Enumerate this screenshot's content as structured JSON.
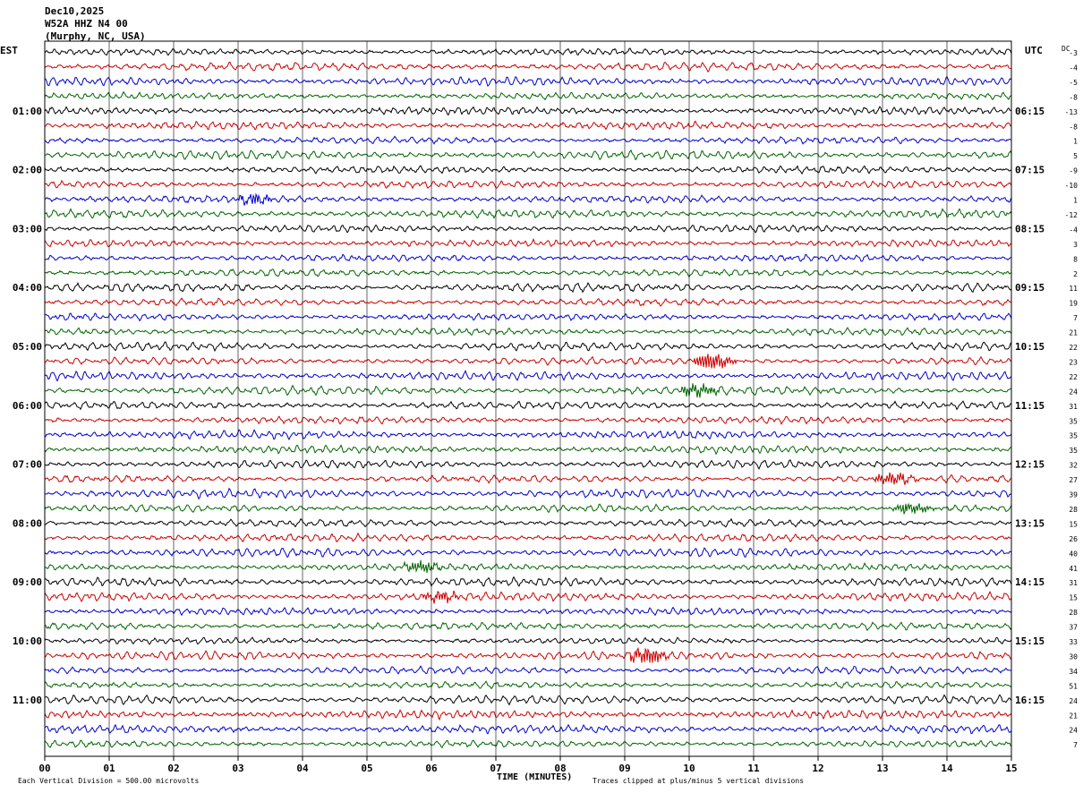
{
  "header": {
    "date": "Dec10,2025",
    "station": "W52A HHZ N4 00",
    "location": "(Murphy, NC, USA)"
  },
  "left_tz": "EST",
  "right_tz": "UTC",
  "dc_label": "DC",
  "x_axis_title": "TIME (MINUTES)",
  "footer": {
    "scale_note": "Each Vertical Division =  500.00 microvolts",
    "clip_note": "Traces clipped at plus/minus 5 vertical divisions"
  },
  "colors": {
    "trace_cycle": [
      "#000000",
      "#cc0000",
      "#0000cc",
      "#006600"
    ],
    "grid": "#000000"
  },
  "chart_data": {
    "type": "line",
    "title": "W52A HHZ N4 00",
    "xlabel": "TIME (MINUTES)",
    "ylabel": "",
    "xlim": [
      0,
      15
    ],
    "x_ticks": [
      "00",
      "01",
      "02",
      "03",
      "04",
      "05",
      "06",
      "07",
      "08",
      "09",
      "10",
      "11",
      "12",
      "13",
      "14",
      "15"
    ],
    "grid": true,
    "traces_per_hour": 4,
    "left_hour_labels": [
      "01:00",
      "02:00",
      "03:00",
      "04:00",
      "05:00",
      "06:00",
      "07:00",
      "08:00",
      "09:00",
      "10:00",
      "11:00"
    ],
    "right_hour_labels": [
      "06:15",
      "07:15",
      "08:15",
      "09:15",
      "10:15",
      "11:15",
      "12:15",
      "13:15",
      "14:15",
      "15:15",
      "16:15"
    ],
    "dc_offsets": [
      -3,
      -4,
      -5,
      -8,
      -13,
      -8,
      1,
      5,
      -9,
      -10,
      1,
      -12,
      -4,
      3,
      8,
      2,
      11,
      19,
      7,
      21,
      22,
      23,
      22,
      24,
      31,
      35,
      35,
      35,
      32,
      27,
      39,
      28,
      15,
      26,
      40,
      41,
      31,
      15,
      28,
      37,
      33,
      30,
      34,
      51,
      24,
      21,
      24,
      7
    ],
    "events": [
      {
        "row": 21,
        "minute": 10.2,
        "amplitude": 2.6
      },
      {
        "row": 23,
        "minute": 10.0,
        "amplitude": 2.0
      },
      {
        "row": 29,
        "minute": 13.0,
        "amplitude": 1.8
      },
      {
        "row": 31,
        "minute": 13.3,
        "amplitude": 1.6
      },
      {
        "row": 35,
        "minute": 5.7,
        "amplitude": 1.6
      },
      {
        "row": 37,
        "minute": 6.0,
        "amplitude": 1.4
      },
      {
        "row": 41,
        "minute": 9.2,
        "amplitude": 2.6
      },
      {
        "row": 10,
        "minute": 3.1,
        "amplitude": 1.2
      }
    ]
  }
}
